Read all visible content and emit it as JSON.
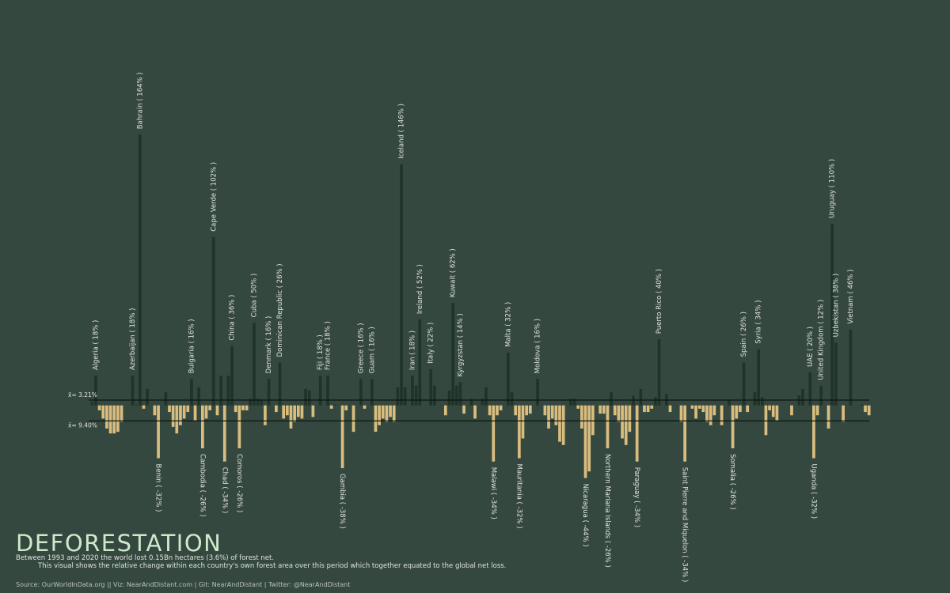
{
  "chart_data": {
    "type": "bar",
    "title": "DEFORESTATION",
    "subtitle": "Between 1993 and 2020 the world lost 0.15Bn hectares (3.6%) of forest net.",
    "description": "This visual shows the relative change within each country's own forest area over this period which together equated to the global net loss.",
    "source": "Source: OurWorldInData.org || Viz: NearAndDistant.com | Git: NearAndDistant | Twitter: @NearAndDistant",
    "ylim": [
      -60,
      190
    ],
    "positive_color": "#1f3429",
    "negative_color": "#d9bd7f",
    "reference_lines": [
      {
        "value": 3.21,
        "label": "x̄= 3.21%"
      },
      {
        "value": -9.4,
        "label": "x̄= 9.40%"
      }
    ],
    "categories": [
      null,
      "Algeria ( 18% )",
      null,
      null,
      null,
      null,
      null,
      null,
      null,
      null,
      null,
      "Azerbaijan ( 18% )",
      null,
      "Bahrain ( 164% )",
      null,
      null,
      null,
      null,
      "Benin ( -32% )",
      null,
      null,
      null,
      null,
      null,
      null,
      null,
      null,
      "Bulgaria ( 16% )",
      null,
      null,
      "Cambodia ( -26% )",
      null,
      null,
      "Cape Verde ( 102% )",
      null,
      null,
      "Chad ( -34% )",
      null,
      "China ( 36% )",
      null,
      "Comoros ( -26% )",
      null,
      null,
      null,
      "Cuba ( 50% )",
      null,
      null,
      null,
      "Denmark ( 16% )",
      null,
      null,
      "Dominican Republic ( 26% )",
      null,
      null,
      null,
      null,
      null,
      null,
      null,
      null,
      null,
      null,
      "Fiji ( 18% )",
      null,
      "France ( 18% )",
      null,
      null,
      null,
      "Gambia ( -38% )",
      null,
      null,
      null,
      null,
      "Greece ( 16% )",
      null,
      null,
      "Guam ( 16% )",
      null,
      null,
      null,
      null,
      null,
      null,
      null,
      "Iceland ( 146% )",
      null,
      null,
      "Iran ( 18% )",
      null,
      "Ireland ( 52% )",
      null,
      null,
      "Italy ( 22% )",
      null,
      null,
      null,
      null,
      null,
      "Kuwait ( 62% )",
      null,
      "Kyrgyzstan ( 14% )",
      null,
      null,
      null,
      null,
      null,
      null,
      null,
      null,
      "Malawi ( -34% )",
      null,
      null,
      null,
      "Malta ( 32% )",
      null,
      null,
      "Mauritania ( -32% )",
      null,
      null,
      null,
      null,
      "Moldova ( 16% )",
      null,
      null,
      null,
      null,
      null,
      null,
      null,
      null,
      null,
      null,
      null,
      null,
      "Nicaragua ( -44% )",
      null,
      null,
      null,
      null,
      null,
      "Northern Mariana Islands ( -26% )",
      null,
      null,
      null,
      null,
      null,
      null,
      null,
      "Paraguay ( -34% )",
      null,
      null,
      null,
      null,
      null,
      "Puerto Rico ( 40% )",
      null,
      null,
      null,
      null,
      null,
      null,
      "Saint Pierre and Miquelon ( -34% )",
      null,
      null,
      null,
      null,
      null,
      null,
      null,
      null,
      null,
      null,
      null,
      null,
      "Somalia ( -26% )",
      null,
      null,
      "Spain ( 26% )",
      null,
      null,
      null,
      "Syria ( 34% )",
      null,
      null,
      null,
      null,
      null,
      null,
      null,
      null,
      null,
      null,
      null,
      null,
      null,
      "UAE ( 20% )",
      "Uganda ( -32% )",
      null,
      "United Kingdom ( 12% )",
      null,
      null,
      "Uruguay ( 110% )",
      "Uzbekistan ( 38% )",
      null,
      null,
      null,
      "Vietnam ( 46% )",
      null,
      null,
      null,
      null,
      null
    ],
    "values": [
      2,
      18,
      -3,
      -8,
      -14,
      -17,
      -17,
      -16,
      -10,
      0,
      0,
      18,
      0.5,
      164,
      -2,
      10,
      0,
      -6,
      -32,
      0,
      8,
      -4,
      -13,
      -17,
      -12,
      -8,
      -4,
      16,
      -9,
      11,
      -26,
      -8,
      -3,
      102,
      -6,
      18,
      -34,
      18,
      36,
      -4,
      -26,
      -3,
      -3,
      4,
      50,
      4,
      3,
      -12,
      16,
      0,
      -4,
      26,
      -8,
      -6,
      -14,
      -10,
      -7,
      -8,
      10,
      9,
      -7,
      0,
      18,
      0,
      18,
      -2,
      0.5,
      0,
      -38,
      -3,
      0,
      -16,
      0,
      16,
      -2,
      0,
      16,
      -16,
      -12,
      -8,
      -10,
      -7,
      -10,
      11,
      146,
      11,
      0,
      18,
      12,
      52,
      0,
      0,
      22,
      12,
      0,
      0,
      -6,
      9,
      62,
      12,
      14,
      -5,
      0,
      4,
      -8,
      0,
      4,
      11,
      -6,
      -34,
      -6,
      -3,
      0,
      32,
      8,
      -6,
      -32,
      -20,
      -6,
      -5,
      0,
      16,
      0,
      -6,
      -14,
      -8,
      -12,
      -22,
      -24,
      0,
      4,
      4,
      -2,
      -14,
      -44,
      -40,
      -18,
      0,
      -5,
      -5,
      -26,
      8,
      -6,
      -10,
      -20,
      -24,
      -16,
      6,
      -34,
      10,
      -4,
      -4,
      -2,
      5,
      40,
      0,
      7,
      -4,
      0,
      0,
      -10,
      -34,
      0,
      -2,
      -8,
      -2,
      -4,
      -10,
      -12,
      -6,
      0,
      -12,
      0,
      3,
      -26,
      -8,
      -4,
      26,
      -4,
      0,
      8,
      34,
      5,
      -18,
      -3,
      -7,
      -9,
      0,
      0,
      0,
      -6,
      0,
      6,
      10,
      0,
      20,
      -32,
      -6,
      12,
      0,
      -14,
      110,
      38,
      0,
      -10,
      0,
      46,
      0,
      0,
      0.5,
      -4,
      -6
    ]
  }
}
